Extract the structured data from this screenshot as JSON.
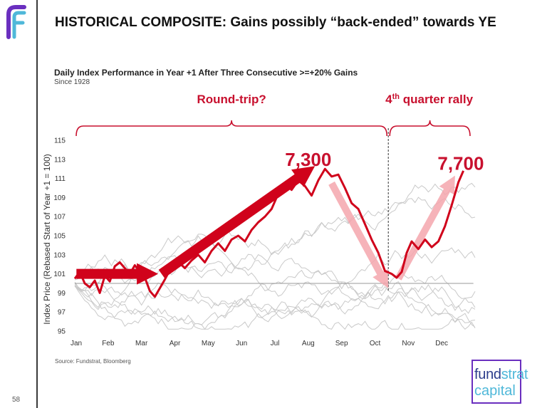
{
  "slide": {
    "title": "HISTORICAL COMPOSITE: Gains possibly “back-ended” towards YE",
    "page_number": "58",
    "source": "Source: Fundstrat, Bloomberg",
    "brand_line1_a": "fund",
    "brand_line1_b": "strat",
    "brand_line2": "capital",
    "logo_icon": "fundstrat-f-icon",
    "accent_color": "#c8102e",
    "arrow_color": "#f4a6ad",
    "brand_color": "#6a2fbf"
  },
  "chart_data": {
    "type": "line",
    "title": "Daily Index Performance in Year +1 After Three Consecutive >=+20% Gains",
    "subtitle": "Since 1928",
    "xlabel": "",
    "ylabel": "Index Price (Rebased Start of Year +1 = 100)",
    "ylim": [
      95,
      115
    ],
    "yticks": [
      "95",
      "97",
      "99",
      "101",
      "103",
      "105",
      "107",
      "109",
      "111",
      "113",
      "115"
    ],
    "xlim": [
      0,
      12
    ],
    "categories": [
      "Jan",
      "Feb",
      "Mar",
      "Apr",
      "May",
      "Jun",
      "Jul",
      "Aug",
      "Sep",
      "Oct",
      "Nov",
      "Dec"
    ],
    "baseline": 100,
    "series": [
      {
        "name": "Composite",
        "color": "#d0021b",
        "x": [
          0.0,
          0.15,
          0.3,
          0.45,
          0.6,
          0.75,
          0.9,
          1.05,
          1.2,
          1.35,
          1.5,
          1.65,
          1.8,
          1.95,
          2.1,
          2.25,
          2.4,
          2.55,
          2.7,
          2.85,
          3.0,
          3.15,
          3.3,
          3.5,
          3.7,
          3.9,
          4.1,
          4.3,
          4.5,
          4.7,
          4.9,
          5.1,
          5.3,
          5.5,
          5.7,
          5.9,
          6.1,
          6.3,
          6.5,
          6.7,
          6.9,
          7.1,
          7.3,
          7.5,
          7.7,
          7.9,
          8.1,
          8.3,
          8.5,
          8.7,
          8.9,
          9.1,
          9.3,
          9.5,
          9.65,
          9.8,
          9.95,
          10.1,
          10.3,
          10.5,
          10.7,
          10.9,
          11.1,
          11.3,
          11.5,
          11.65
        ],
        "values": [
          100.5,
          101.2,
          100.0,
          99.6,
          100.3,
          99.0,
          100.8,
          100.2,
          101.8,
          102.2,
          101.6,
          101.0,
          101.9,
          101.2,
          100.6,
          99.2,
          98.6,
          99.5,
          100.4,
          101.4,
          101.8,
          102.1,
          101.6,
          102.4,
          103.0,
          102.2,
          103.4,
          104.2,
          103.4,
          104.6,
          105.0,
          104.4,
          105.6,
          106.4,
          107.0,
          107.8,
          109.4,
          110.5,
          109.8,
          110.8,
          110.2,
          109.2,
          110.8,
          112.0,
          111.2,
          111.4,
          110.0,
          108.4,
          107.8,
          106.2,
          104.6,
          103.2,
          101.3,
          101.0,
          100.6,
          101.2,
          103.2,
          104.4,
          103.6,
          104.6,
          103.8,
          104.4,
          106.0,
          108.2,
          110.6,
          111.8
        ]
      }
    ],
    "annotations": [
      {
        "text": "Round-trip?",
        "span": [
          0.0,
          9.4
        ]
      },
      {
        "text": "4th quarter rally",
        "span": [
          9.4,
          11.85
        ]
      },
      {
        "text": "7,300",
        "x": 7.0,
        "y": 113.0
      },
      {
        "text": "7,700",
        "x": 11.4,
        "y": 112.8
      }
    ],
    "arrows": [
      {
        "kind": "solid",
        "from": [
          0.05,
          101.0
        ],
        "to": [
          2.5,
          101.0
        ]
      },
      {
        "kind": "solid",
        "from": [
          2.6,
          101.0
        ],
        "to": [
          7.2,
          112.3
        ]
      },
      {
        "kind": "faded",
        "from": [
          7.7,
          110.5
        ],
        "to": [
          9.4,
          99.5
        ]
      },
      {
        "kind": "faded",
        "from": [
          9.7,
          100.5
        ],
        "to": [
          11.4,
          111.3
        ]
      }
    ],
    "divider_x": 9.4,
    "legend": "none",
    "grid": false
  }
}
